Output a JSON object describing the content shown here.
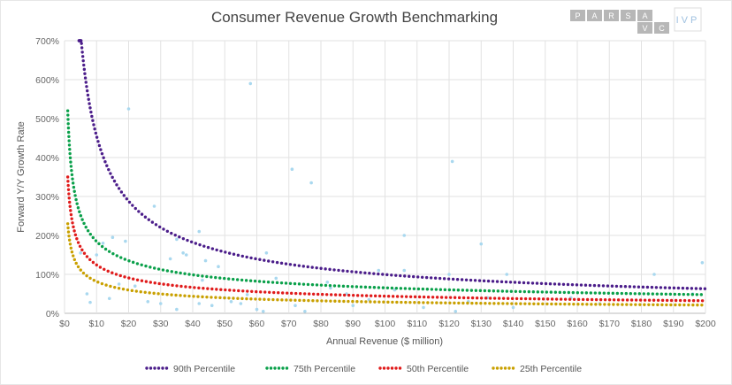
{
  "logos": {
    "parsa": [
      "P",
      "A",
      "R",
      "S",
      "A",
      "V",
      "C"
    ],
    "ivp": "IVP"
  },
  "chart_data": {
    "type": "scatter",
    "title": "Consumer Revenue Growth Benchmarking",
    "xlabel": "Annual Revenue ($ million)",
    "ylabel": "Forward  Y/Y Growth  Rate",
    "xlim": [
      0,
      200
    ],
    "ylim": [
      0,
      700
    ],
    "x_ticks": [
      "$0",
      "$10",
      "$20",
      "$30",
      "$40",
      "$50",
      "$60",
      "$70",
      "$80",
      "$90",
      "$100",
      "$110",
      "$120",
      "$130",
      "$140",
      "$150",
      "$160",
      "$170",
      "$180",
      "$190",
      "$200"
    ],
    "y_ticks": [
      "0%",
      "100%",
      "200%",
      "300%",
      "400%",
      "500%",
      "600%",
      "700%"
    ],
    "grid": true,
    "legend_position": "bottom",
    "series": [
      {
        "name": "90th Percentile",
        "color": "#4b1d8a",
        "kind": "power-curve",
        "a": 2080,
        "b": -0.66,
        "x_start": 4.5
      },
      {
        "name": "75th Percentile",
        "color": "#0aa04a",
        "kind": "power-curve",
        "a": 520,
        "b": -0.45,
        "x_start": 1
      },
      {
        "name": "50th Percentile",
        "color": "#e01b1b",
        "kind": "power-curve",
        "a": 350,
        "b": -0.45,
        "x_start": 1
      },
      {
        "name": "25th Percentile",
        "color": "#c9a000",
        "kind": "power-curve",
        "a": 230,
        "b": -0.45,
        "x_start": 1
      }
    ],
    "scatter_color": "#a9d8ef",
    "points": [
      [
        20,
        525
      ],
      [
        58,
        590
      ],
      [
        71,
        370
      ],
      [
        77,
        335
      ],
      [
        121,
        390
      ],
      [
        28,
        275
      ],
      [
        42,
        210
      ],
      [
        106,
        200
      ],
      [
        130,
        178
      ],
      [
        38,
        150
      ],
      [
        15,
        195
      ],
      [
        12,
        180
      ],
      [
        10,
        150
      ],
      [
        5,
        155
      ],
      [
        7,
        50
      ],
      [
        8,
        28
      ],
      [
        14,
        38
      ],
      [
        19,
        185
      ],
      [
        33,
        140
      ],
      [
        35,
        190
      ],
      [
        37,
        155
      ],
      [
        43,
        85
      ],
      [
        44,
        135
      ],
      [
        48,
        120
      ],
      [
        50,
        40
      ],
      [
        55,
        25
      ],
      [
        57,
        48
      ],
      [
        60,
        10
      ],
      [
        62,
        5
      ],
      [
        63,
        155
      ],
      [
        66,
        90
      ],
      [
        72,
        20
      ],
      [
        75,
        5
      ],
      [
        82,
        80
      ],
      [
        83,
        65
      ],
      [
        88,
        50
      ],
      [
        90,
        20
      ],
      [
        95,
        35
      ],
      [
        98,
        110
      ],
      [
        103,
        60
      ],
      [
        106,
        110
      ],
      [
        112,
        15
      ],
      [
        120,
        100
      ],
      [
        122,
        5
      ],
      [
        126,
        30
      ],
      [
        132,
        40
      ],
      [
        138,
        100
      ],
      [
        140,
        15
      ],
      [
        158,
        40
      ],
      [
        167,
        25
      ],
      [
        184,
        100
      ],
      [
        196,
        50
      ],
      [
        199,
        130
      ],
      [
        30,
        25
      ],
      [
        26,
        30
      ],
      [
        35,
        10
      ],
      [
        42,
        25
      ],
      [
        46,
        20
      ],
      [
        52,
        30
      ],
      [
        22,
        70
      ],
      [
        17,
        75
      ]
    ]
  }
}
